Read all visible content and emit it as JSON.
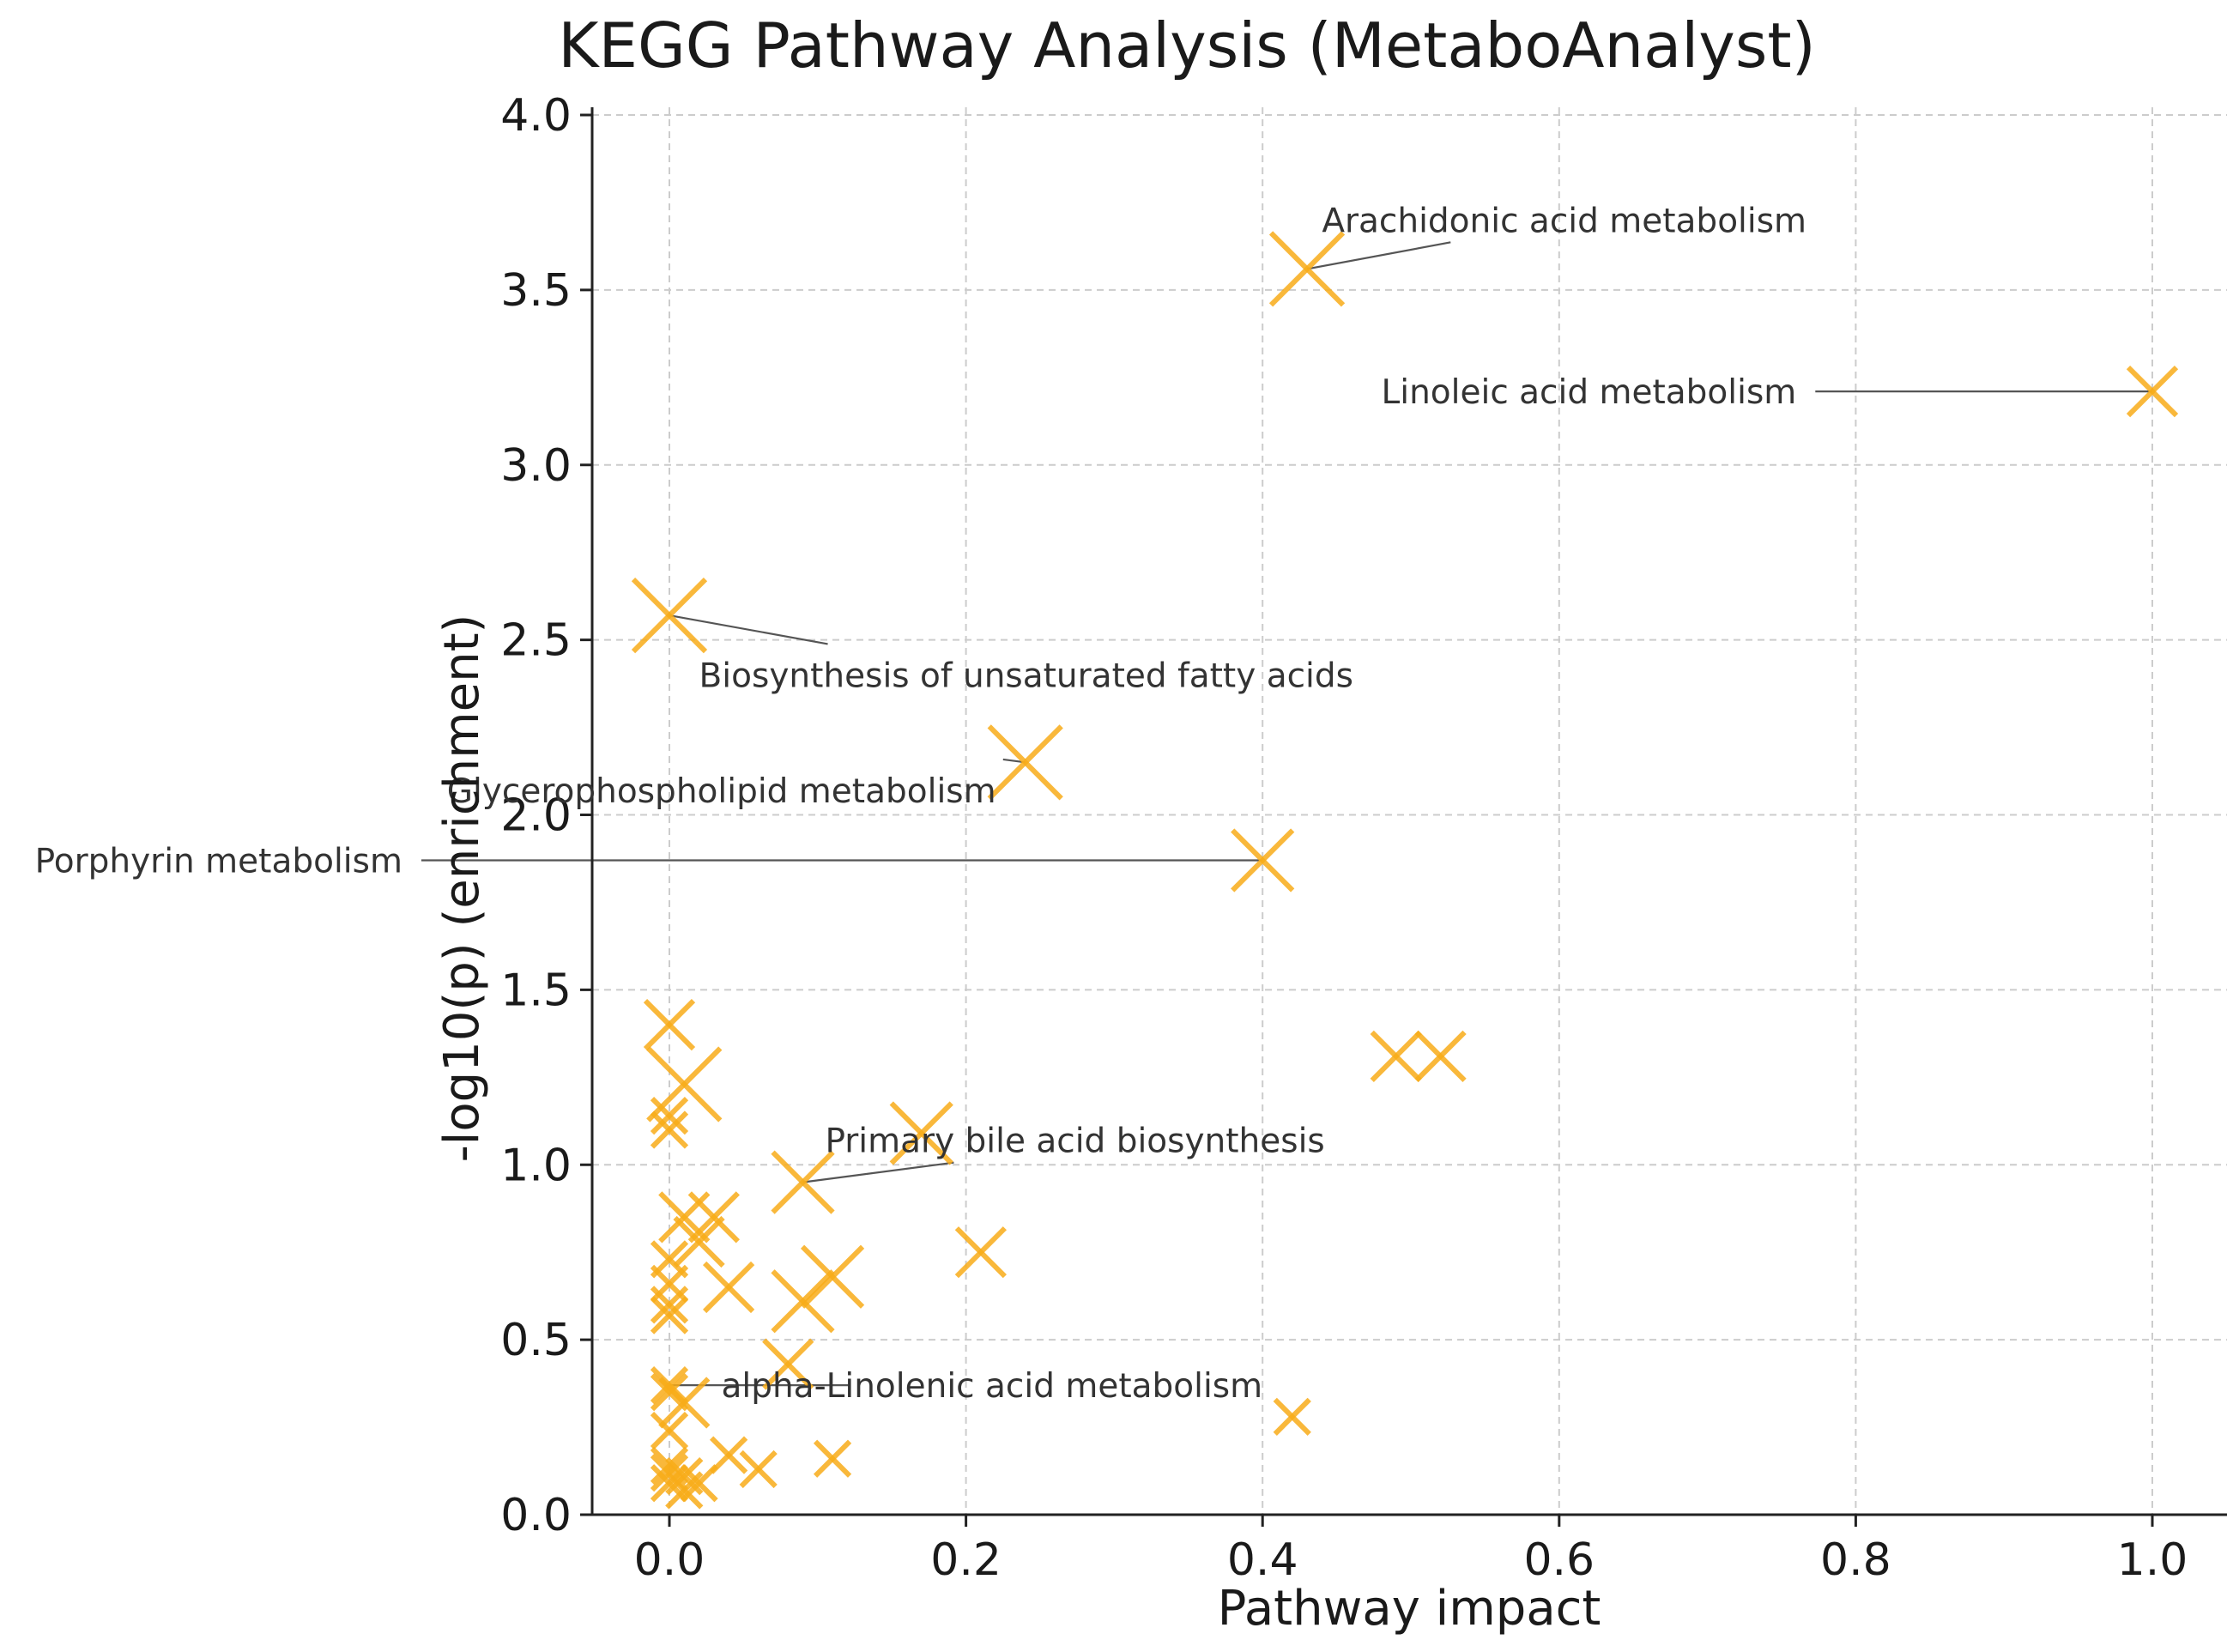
{
  "chart_data": {
    "type": "scatter",
    "title": "KEGG Pathway Analysis (MetaboAnalyst)",
    "xlabel": "Pathway impact",
    "ylabel": "-log10(p) (enrichment)",
    "xlim": [
      -0.05,
      1.05
    ],
    "ylim": [
      0.0,
      4.05
    ],
    "xticks": [
      0.0,
      0.2,
      0.4,
      0.6,
      0.8,
      1.0
    ],
    "yticks": [
      0.0,
      0.5,
      1.0,
      1.5,
      2.0,
      2.5,
      3.0,
      3.5,
      4.0
    ],
    "xtick_labels": [
      "0.0",
      "0.2",
      "0.4",
      "0.6",
      "0.8",
      "1.0"
    ],
    "ytick_labels": [
      "0.0",
      "0.5",
      "1.0",
      "1.5",
      "2.0",
      "2.5",
      "3.0",
      "3.5",
      "4.0"
    ],
    "grid": true,
    "marker": "x",
    "marker_color": "#f8ab19",
    "points": [
      {
        "x": 0.43,
        "y": 3.56,
        "size": 5
      },
      {
        "x": 1.0,
        "y": 3.21,
        "size": 3
      },
      {
        "x": 0.0,
        "y": 2.57,
        "size": 5
      },
      {
        "x": 0.24,
        "y": 2.15,
        "size": 5
      },
      {
        "x": 0.4,
        "y": 1.87,
        "size": 4
      },
      {
        "x": 0.0,
        "y": 1.4,
        "size": 3
      },
      {
        "x": 0.01,
        "y": 1.23,
        "size": 5
      },
      {
        "x": 0.0,
        "y": 1.14,
        "size": 2
      },
      {
        "x": 0.0,
        "y": 1.1,
        "size": 2
      },
      {
        "x": 0.49,
        "y": 1.31,
        "size": 3
      },
      {
        "x": 0.52,
        "y": 1.31,
        "size": 3
      },
      {
        "x": 0.17,
        "y": 1.09,
        "size": 4
      },
      {
        "x": 0.09,
        "y": 0.95,
        "size": 4
      },
      {
        "x": 0.01,
        "y": 0.85,
        "size": 3
      },
      {
        "x": 0.03,
        "y": 0.85,
        "size": 3
      },
      {
        "x": 0.02,
        "y": 0.78,
        "size": 3
      },
      {
        "x": 0.0,
        "y": 0.73,
        "size": 2
      },
      {
        "x": 0.21,
        "y": 0.75,
        "size": 3
      },
      {
        "x": 0.11,
        "y": 0.68,
        "size": 4
      },
      {
        "x": 0.09,
        "y": 0.61,
        "size": 4
      },
      {
        "x": 0.04,
        "y": 0.65,
        "size": 3
      },
      {
        "x": 0.0,
        "y": 0.66,
        "size": 2
      },
      {
        "x": 0.0,
        "y": 0.6,
        "size": 2
      },
      {
        "x": 0.0,
        "y": 0.57,
        "size": 2
      },
      {
        "x": 0.08,
        "y": 0.43,
        "size": 3
      },
      {
        "x": 0.0,
        "y": 0.37,
        "size": 2
      },
      {
        "x": 0.0,
        "y": 0.35,
        "size": 2
      },
      {
        "x": 0.01,
        "y": 0.32,
        "size": 3
      },
      {
        "x": 0.0,
        "y": 0.24,
        "size": 2
      },
      {
        "x": 0.42,
        "y": 0.28,
        "size": 2
      },
      {
        "x": 0.04,
        "y": 0.17,
        "size": 2
      },
      {
        "x": 0.06,
        "y": 0.13,
        "size": 2
      },
      {
        "x": 0.11,
        "y": 0.16,
        "size": 2
      },
      {
        "x": 0.0,
        "y": 0.14,
        "size": 2
      },
      {
        "x": 0.0,
        "y": 0.12,
        "size": 2
      },
      {
        "x": 0.01,
        "y": 0.11,
        "size": 2
      },
      {
        "x": 0.0,
        "y": 0.09,
        "size": 2
      },
      {
        "x": 0.01,
        "y": 0.07,
        "size": 2
      },
      {
        "x": 0.02,
        "y": 0.09,
        "size": 2
      }
    ],
    "annotations": [
      {
        "text": "Arachidonic acid metabolism",
        "point_x": 0.43,
        "point_y": 3.56,
        "text_x": 0.44,
        "text_y": 3.7,
        "anchor": "start"
      },
      {
        "text": "Linoleic acid metabolism",
        "point_x": 1.0,
        "point_y": 3.21,
        "text_x": 0.76,
        "text_y": 3.21,
        "anchor": "end"
      },
      {
        "text": "Biosynthesis of unsaturated fatty acids",
        "point_x": 0.0,
        "point_y": 2.57,
        "text_x": 0.02,
        "text_y": 2.4,
        "anchor": "start"
      },
      {
        "text": "Glycerophospholipid metabolism",
        "point_x": 0.24,
        "point_y": 2.15,
        "text_x": -0.15,
        "text_y": 2.07,
        "anchor": "start"
      },
      {
        "text": "Porphyrin metabolism",
        "point_x": 0.4,
        "point_y": 1.87,
        "text_x": -0.18,
        "text_y": 1.87,
        "anchor": "end"
      },
      {
        "text": "Primary bile acid biosynthesis",
        "point_x": 0.09,
        "point_y": 0.95,
        "text_x": 0.105,
        "text_y": 1.07,
        "anchor": "start"
      },
      {
        "text": "alpha-Linolenic acid metabolism",
        "point_x": 0.0,
        "point_y": 0.37,
        "text_x": 0.035,
        "text_y": 0.37,
        "anchor": "start"
      }
    ]
  }
}
